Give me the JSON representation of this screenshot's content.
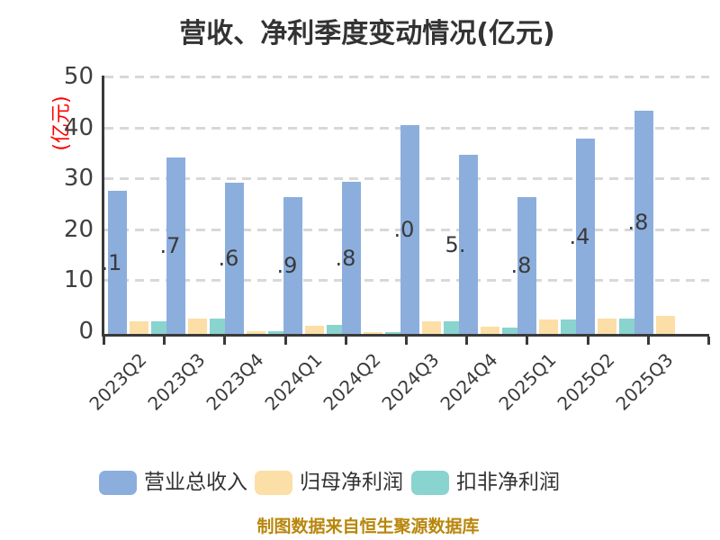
{
  "title": "营收、净利季度变动情况(亿元)",
  "y_axis_label": "(亿元)",
  "footer_note": "制图数据来自恒生聚源数据库",
  "colors": {
    "title_text": "#333333",
    "axis": "#3a3a3a",
    "gridline": "#d8d8d8",
    "y_axis_label": "#ff0000",
    "footer_text": "#b8860b",
    "revenue_bar": "#8caedd",
    "net_profit_bar": "#fbdfa6",
    "non_gaap_bar": "#89d4cf"
  },
  "chart_data": {
    "type": "bar",
    "title": "营收、净利季度变动情况(亿元)",
    "categories": [
      "2023Q2",
      "2023Q3",
      "2023Q4",
      "2024Q1",
      "2024Q2",
      "2024Q3",
      "2024Q4",
      "2025Q1",
      "2025Q2",
      "2025Q3"
    ],
    "series": [
      {
        "name": "营业总收入",
        "color": "#8caedd",
        "values": [
          28.1,
          34.7,
          29.6,
          26.9,
          29.8,
          41.0,
          35.1,
          26.8,
          38.4,
          43.8
        ],
        "visible_value_labels": [
          ".1",
          ".7",
          ".6",
          ".9",
          ".8",
          ".0",
          "5.",
          ".8",
          ".4",
          ".8"
        ]
      },
      {
        "name": "归母净利润",
        "color": "#fbdfa6",
        "values": [
          2.4,
          3.0,
          0.5,
          1.6,
          0.4,
          2.4,
          1.4,
          2.8,
          3.0,
          3.5
        ]
      },
      {
        "name": "扣非净利润",
        "color": "#89d4cf",
        "values": [
          2.4,
          3.0,
          0.6,
          1.7,
          0.3,
          2.5,
          1.2,
          2.8,
          3.0,
          0
        ]
      }
    ],
    "xlabel": "",
    "ylabel": "(亿元)",
    "ylim": [
      0,
      50
    ],
    "yticks": [
      0,
      10,
      20,
      30,
      40,
      50
    ],
    "grid": "horizontal-dashed",
    "x_tick_rotation": 45,
    "legend_position": "bottom"
  },
  "legend": {
    "items": [
      {
        "label": "营业总收入",
        "color": "#8caedd"
      },
      {
        "label": "归母净利润",
        "color": "#fbdfa6"
      },
      {
        "label": "扣非净利润",
        "color": "#89d4cf"
      }
    ]
  }
}
